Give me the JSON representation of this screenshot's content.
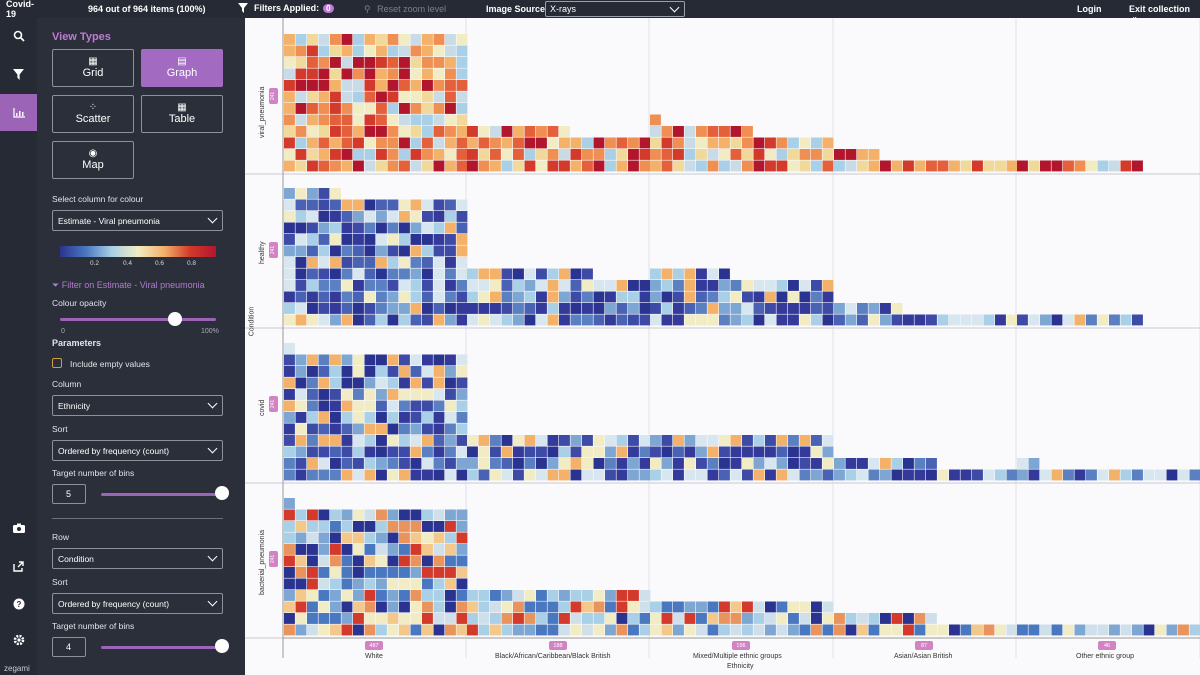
{
  "topbar": {
    "app_title": "Covid-19",
    "item_count": "964 out of 964 items (100%)",
    "filters_label": "Filters Applied:",
    "filters_count": "0",
    "reset_zoom": "Reset zoom level",
    "image_source_label": "Image Source",
    "image_source_value": "X-rays",
    "login": "Login",
    "exit_collection": "Exit collection"
  },
  "rail": {
    "logo": "zegami"
  },
  "panel": {
    "view_types_title": "View Types",
    "view_buttons": [
      {
        "label": "Grid",
        "glyph": "▦"
      },
      {
        "label": "Graph",
        "glyph": "▤"
      },
      {
        "label": "Scatter",
        "glyph": "⁘"
      },
      {
        "label": "Table",
        "glyph": "▦"
      },
      {
        "label": "Map",
        "glyph": "◉"
      }
    ],
    "colour_column_label": "Select column for colour",
    "colour_column_value": "Estimate - Viral pneumonia",
    "colour_ticks": [
      "0.2",
      "0.4",
      "0.6",
      "0.8"
    ],
    "filter_link": "Filter on Estimate - Viral pneumonia",
    "opacity_label": "Colour opacity",
    "opacity_min": "0",
    "opacity_max": "100%",
    "opacity_value": 0.74,
    "parameters_title": "Parameters",
    "include_empty": "Include empty values",
    "column_label": "Column",
    "column_value": "Ethnicity",
    "sort_label": "Sort",
    "sort_value": "Ordered by frequency (count)",
    "bins_label": "Target number of bins",
    "bins_value": "5",
    "row_label": "Row",
    "row_value": "Condition",
    "sort2_label": "Sort",
    "sort2_value": "Ordered by frequency (count)",
    "bins2_label": "Target number of bins",
    "bins2_value": "4"
  },
  "graph": {
    "y_title": "Condition",
    "x_title": "Ethnicity",
    "rows": [
      {
        "name": "viral_pneumonia",
        "count": "241"
      },
      {
        "name": "healthy",
        "count": "241"
      },
      {
        "name": "covid",
        "count": "241"
      },
      {
        "name": "bacterial_pneumonia",
        "count": "241"
      }
    ],
    "columns": [
      {
        "name": "White",
        "count": "487"
      },
      {
        "name": "Black/African/Caribbean/Black British",
        "count": "188"
      },
      {
        "name": "Mixed/Multiple ethnic groups",
        "count": "156"
      },
      {
        "name": "Asian/Asian British",
        "count": "87"
      },
      {
        "name": "Other ethnic group",
        "count": "46"
      }
    ]
  },
  "colors": {
    "accent": "#9b64b6",
    "badge": "#d283c3"
  }
}
